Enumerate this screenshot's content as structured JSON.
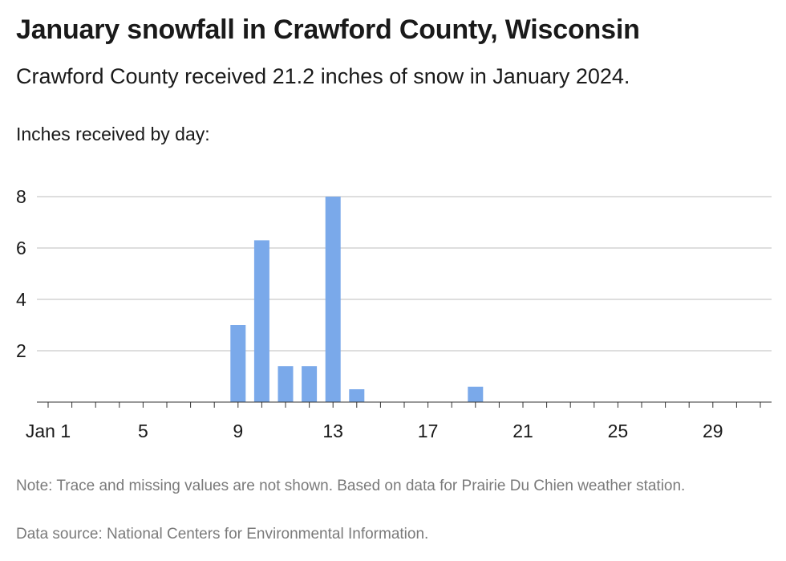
{
  "chart_data": {
    "type": "bar",
    "title": "January snowfall in Crawford County, Wisconsin",
    "subtitle": "Crawford County received 21.2 inches of snow in January 2024.",
    "ylabel": "Inches received by day:",
    "xlabel": "",
    "x": [
      9,
      10,
      11,
      12,
      13,
      14,
      19
    ],
    "values": [
      3.0,
      6.3,
      1.4,
      1.4,
      8.0,
      0.5,
      0.6
    ],
    "xlim": [
      1,
      31
    ],
    "ylim": [
      0,
      8
    ],
    "y_ticks": [
      2,
      4,
      6,
      8
    ],
    "x_ticks": [
      1,
      5,
      9,
      13,
      17,
      21,
      25,
      29
    ],
    "x_tick_labels": [
      "Jan 1",
      "5",
      "9",
      "13",
      "17",
      "21",
      "25",
      "29"
    ],
    "bar_color": "#7aa9ea",
    "grid": true,
    "note": "Note: Trace and missing values are not shown. Based on data for Prairie Du Chien weather station.",
    "source": "Data source: National Centers for Environmental Information."
  }
}
